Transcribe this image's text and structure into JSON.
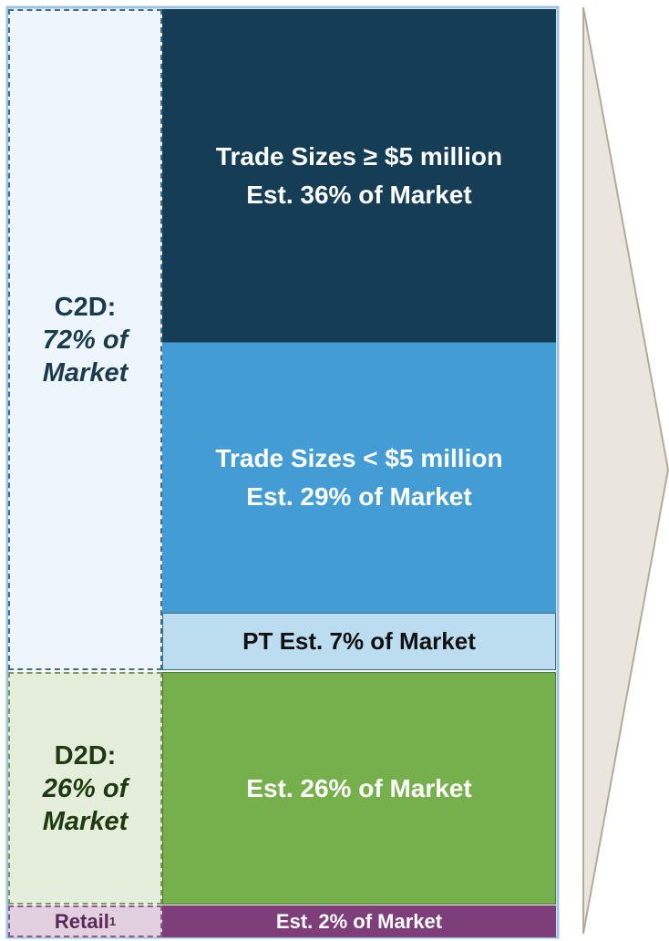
{
  "segments": [
    {
      "label": "C2D:",
      "sublabel": "72% of Market",
      "blocks": [
        [
          "Trade Sizes ≥ $5 million",
          "Est. 36% of Market"
        ],
        [
          "Trade Sizes < $5 million",
          "Est. 29% of Market"
        ],
        [
          "PT Est. 7% of Market"
        ]
      ]
    },
    {
      "label": "D2D:",
      "sublabel": "26% of Market",
      "blocks": [
        [
          "Est. 26% of Market"
        ]
      ]
    },
    {
      "label": "Retail",
      "superscript": "1",
      "blocks": [
        [
          "Est. 2% of Market"
        ]
      ]
    }
  ]
}
